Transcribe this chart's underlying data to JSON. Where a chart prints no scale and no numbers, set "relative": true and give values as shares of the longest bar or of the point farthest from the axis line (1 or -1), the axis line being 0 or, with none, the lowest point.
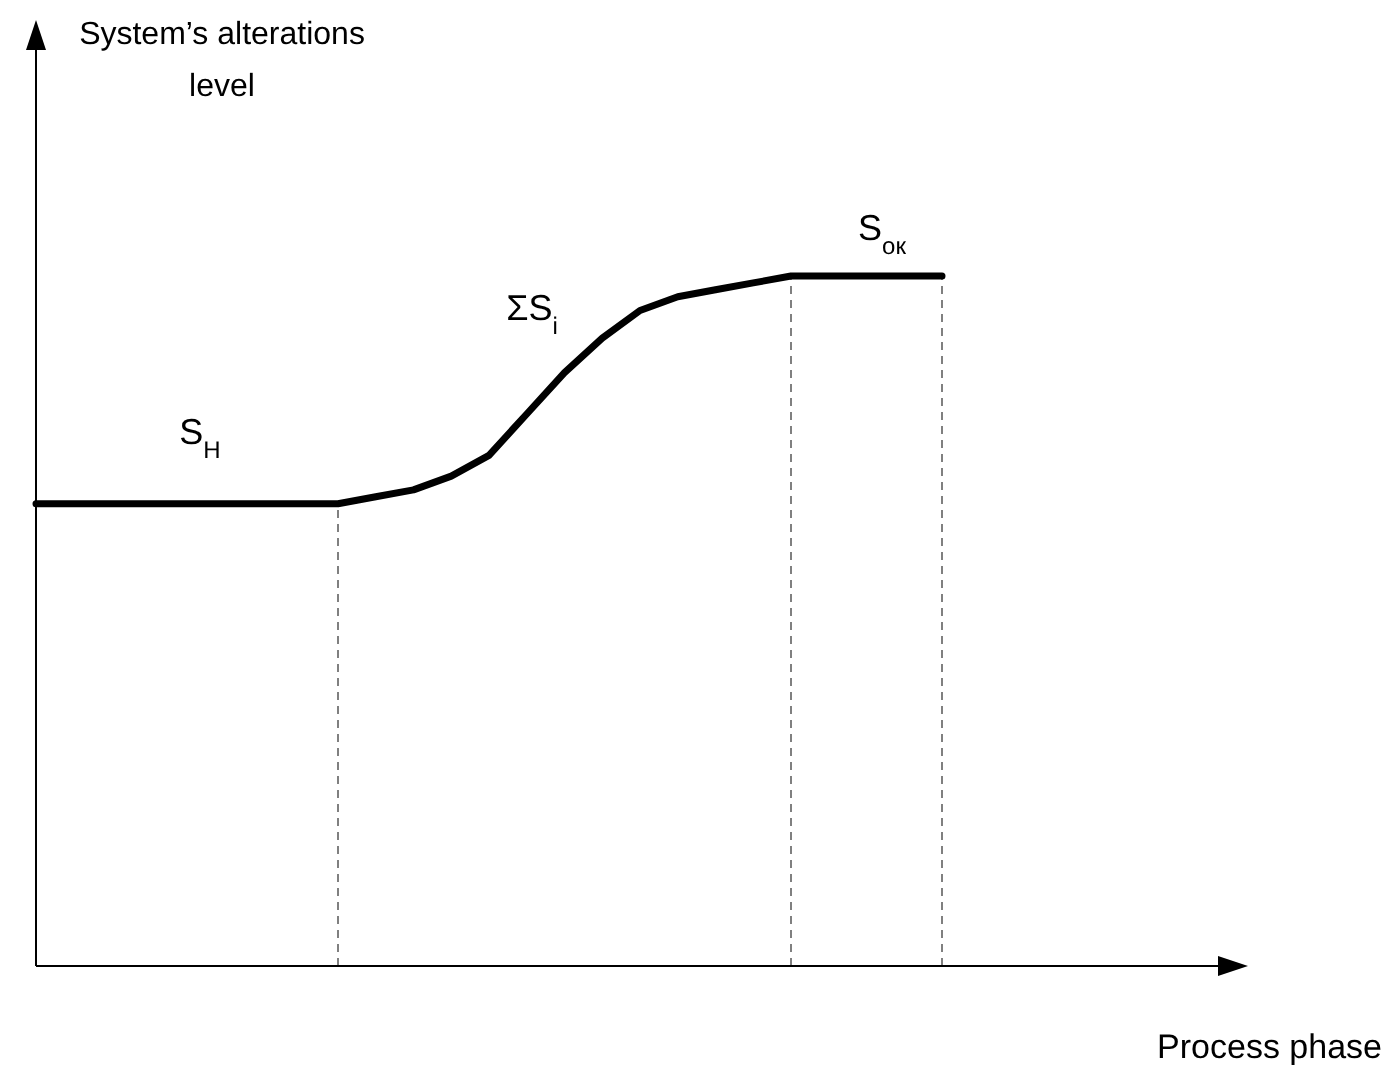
{
  "chart_data": {
    "type": "line",
    "relative": true,
    "xlabel": "Process phase",
    "categories": [
      null,
      null,
      null,
      null,
      null,
      null,
      null,
      null,
      null,
      null,
      null,
      null,
      null,
      null,
      null,
      null,
      null,
      null,
      null,
      null,
      null,
      null,
      null,
      null,
      null,
      null,
      null,
      null,
      null,
      null,
      null,
      null,
      null
    ],
    "grid": false,
    "legend": false,
    "marker": "none",
    "line_style": "solid",
    "series": [
      {
        "color": "#000000",
        "values": [
          0.67,
          0.67,
          0.67,
          0.67,
          0.67,
          0.67,
          0.67,
          0.67,
          0.67,
          0.68,
          0.69,
          0.71,
          0.74,
          0.8,
          0.86,
          0.91,
          0.95,
          0.97,
          0.98,
          0.99,
          1,
          1,
          1,
          1,
          1,
          null,
          null,
          null,
          null,
          null,
          null,
          null,
          null
        ]
      }
    ],
    "annotations": [
      "System’s alterations level",
      "S$_{Н}$",
      "ΣS$_{i}$",
      "S$_{ок}$"
    ]
  }
}
